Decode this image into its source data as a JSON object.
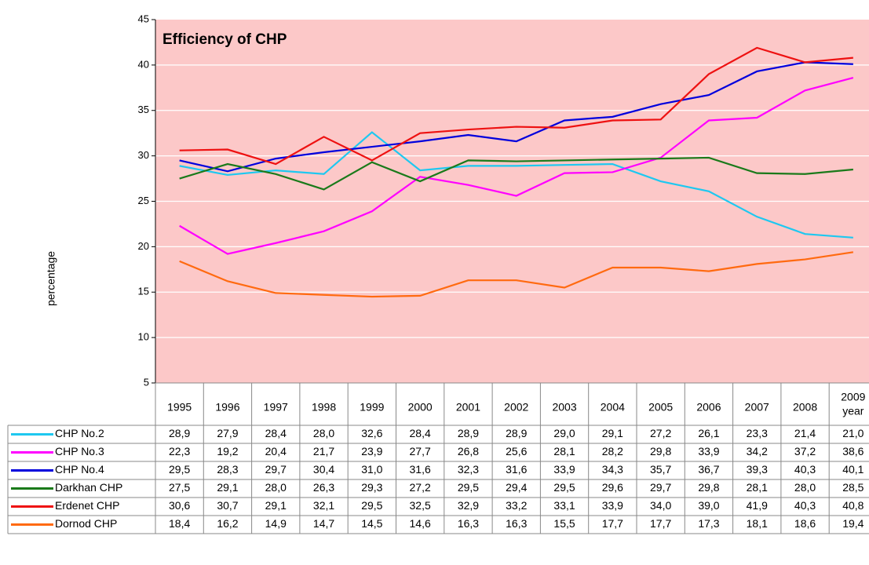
{
  "chart_data": {
    "type": "line",
    "title": "Efficiency of CHP",
    "ylabel": "percentage",
    "xlabel": "year",
    "categories": [
      "1995",
      "1996",
      "1997",
      "1998",
      "1999",
      "2000",
      "2001",
      "2002",
      "2003",
      "2004",
      "2005",
      "2006",
      "2007",
      "2008",
      "2009"
    ],
    "ylim": [
      5,
      45
    ],
    "yticks": [
      5,
      10,
      15,
      20,
      25,
      30,
      35,
      40,
      45
    ],
    "grid": true,
    "background": "#fcc8c8",
    "series": [
      {
        "name": "CHP No.2",
        "color": "#1ec8f0",
        "values": [
          28.9,
          27.9,
          28.4,
          28.0,
          32.6,
          28.4,
          28.9,
          28.9,
          29.0,
          29.1,
          27.2,
          26.1,
          23.3,
          21.4,
          21.0
        ],
        "value_labels": [
          "28,9",
          "27,9",
          "28,4",
          "28,0",
          "32,6",
          "28,4",
          "28,9",
          "28,9",
          "29,0",
          "29,1",
          "27,2",
          "26,1",
          "23,3",
          "21,4",
          "21,0"
        ]
      },
      {
        "name": "CHP No.3",
        "color": "#ff00ff",
        "values": [
          22.3,
          19.2,
          20.4,
          21.7,
          23.9,
          27.7,
          26.8,
          25.6,
          28.1,
          28.2,
          29.8,
          33.9,
          34.2,
          37.2,
          38.6
        ],
        "value_labels": [
          "22,3",
          "19,2",
          "20,4",
          "21,7",
          "23,9",
          "27,7",
          "26,8",
          "25,6",
          "28,1",
          "28,2",
          "29,8",
          "33,9",
          "34,2",
          "37,2",
          "38,6"
        ]
      },
      {
        "name": "CHP No.4",
        "color": "#0000dd",
        "values": [
          29.5,
          28.3,
          29.7,
          30.4,
          31.0,
          31.6,
          32.3,
          31.6,
          33.9,
          34.3,
          35.7,
          36.7,
          39.3,
          40.3,
          40.1
        ],
        "value_labels": [
          "29,5",
          "28,3",
          "29,7",
          "30,4",
          "31,0",
          "31,6",
          "32,3",
          "31,6",
          "33,9",
          "34,3",
          "35,7",
          "36,7",
          "39,3",
          "40,3",
          "40,1"
        ]
      },
      {
        "name": "Darkhan CHP",
        "color": "#1a7a1a",
        "values": [
          27.5,
          29.1,
          28.0,
          26.3,
          29.3,
          27.2,
          29.5,
          29.4,
          29.5,
          29.6,
          29.7,
          29.8,
          28.1,
          28.0,
          28.5
        ],
        "value_labels": [
          "27,5",
          "29,1",
          "28,0",
          "26,3",
          "29,3",
          "27,2",
          "29,5",
          "29,4",
          "29,5",
          "29,6",
          "29,7",
          "29,8",
          "28,1",
          "28,0",
          "28,5"
        ]
      },
      {
        "name": "Erdenet CHP",
        "color": "#ee1111",
        "values": [
          30.6,
          30.7,
          29.1,
          32.1,
          29.5,
          32.5,
          32.9,
          33.2,
          33.1,
          33.9,
          34.0,
          39.0,
          41.9,
          40.3,
          40.8
        ],
        "value_labels": [
          "30,6",
          "30,7",
          "29,1",
          "32,1",
          "29,5",
          "32,5",
          "32,9",
          "33,2",
          "33,1",
          "33,9",
          "34,0",
          "39,0",
          "41,9",
          "40,3",
          "40,8"
        ]
      },
      {
        "name": "Dornod CHP",
        "color": "#ff6a10",
        "values": [
          18.4,
          16.2,
          14.9,
          14.7,
          14.5,
          14.6,
          16.3,
          16.3,
          15.5,
          17.7,
          17.7,
          17.3,
          18.1,
          18.6,
          19.4
        ],
        "value_labels": [
          "18,4",
          "16,2",
          "14,9",
          "14,7",
          "14,5",
          "14,6",
          "16,3",
          "16,3",
          "15,5",
          "17,7",
          "17,7",
          "17,3",
          "18,1",
          "18,6",
          "19,4"
        ]
      }
    ]
  }
}
